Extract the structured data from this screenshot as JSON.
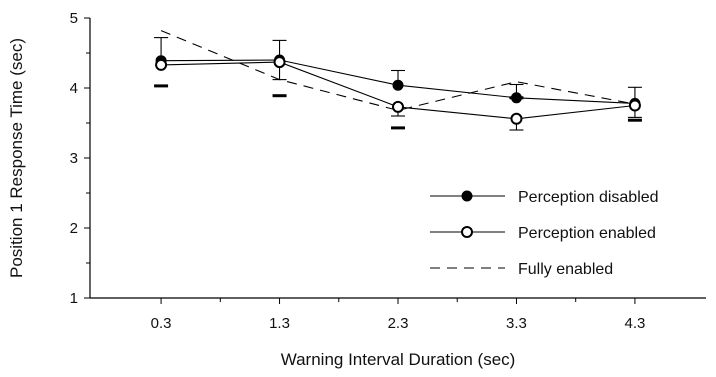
{
  "chart_data": {
    "type": "line",
    "xlabel": "Warning Interval Duration (sec)",
    "ylabel": "Position 1 Response Time (sec)",
    "categories": [
      "0.3",
      "1.3",
      "2.3",
      "3.3",
      "4.3"
    ],
    "x": [
      0.3,
      1.3,
      2.3,
      3.3,
      4.3
    ],
    "xlim": [
      -0.3,
      4.9
    ],
    "ylim": [
      1,
      5
    ],
    "yticks": [
      1,
      2,
      3,
      4,
      5
    ],
    "grid": false,
    "legend_position": "bottom-right",
    "series": [
      {
        "name": "Perception disabled",
        "marker": "filled-circle",
        "line": "solid",
        "values": [
          4.39,
          4.4,
          4.04,
          3.86,
          3.78
        ],
        "error_upper": [
          4.72,
          4.68,
          4.25,
          4.05,
          4.01
        ],
        "error_lower_bar": [
          4.03,
          3.89,
          3.43,
          3.86,
          3.54
        ]
      },
      {
        "name": "Perception enabled",
        "marker": "open-circle",
        "line": "solid",
        "values": [
          4.33,
          4.37,
          3.73,
          3.56,
          3.75
        ],
        "error_upper": [
          4.33,
          4.37,
          3.73,
          3.56,
          3.75
        ],
        "error_lower": [
          4.33,
          4.12,
          3.6,
          3.4,
          3.58
        ]
      },
      {
        "name": "Fully enabled",
        "marker": "none",
        "line": "dashed",
        "values": [
          4.82,
          4.12,
          3.68,
          4.09,
          3.77
        ]
      }
    ]
  }
}
